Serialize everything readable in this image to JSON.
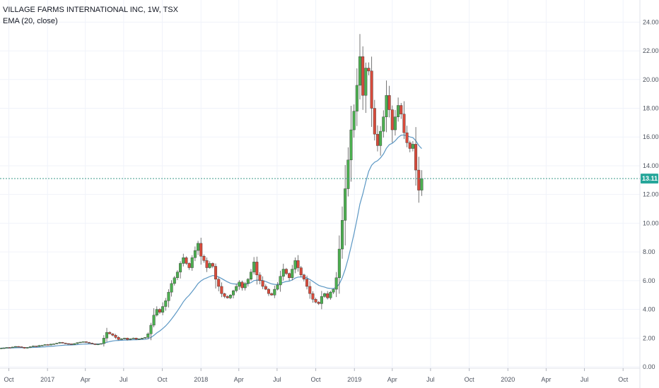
{
  "header": {
    "title": "VILLAGE FARMS INTERNATIONAL INC, 1W, TSX",
    "indicator": "EMA (20, close)"
  },
  "chart_data": {
    "type": "candlestick",
    "colors": {
      "up": "#4caf50",
      "down": "#d84b3b",
      "ema": "#5b97c4",
      "price_line": "#3d9a8b",
      "grid": "#f0f3fa",
      "axis_text": "#4c525e",
      "badge": "#26a69a"
    },
    "last_price_label": "13.11",
    "last_price": 13.11,
    "ylim": [
      0,
      25
    ],
    "y_ticks": [
      0,
      2,
      4,
      6,
      8,
      10,
      12,
      14,
      16,
      18,
      20,
      22,
      24
    ],
    "y_tick_labels": [
      "0.00",
      "2.00",
      "4.00",
      "6.00",
      "8.00",
      "10.00",
      "12.00",
      "14.00",
      "16.00",
      "18.00",
      "20.00",
      "22.00",
      "24.00"
    ],
    "x_tick_labels": [
      "Oct",
      "2017",
      "Apr",
      "Jul",
      "Oct",
      "2018",
      "Apr",
      "Jul",
      "Oct",
      "2019",
      "Apr",
      "Jul",
      "Oct",
      "2020",
      "Apr",
      "Jul",
      "Oct"
    ],
    "x_ticks": [
      "2016-10-01",
      "2017-01-01",
      "2017-04-01",
      "2017-07-01",
      "2017-10-01",
      "2018-01-01",
      "2018-04-01",
      "2018-07-01",
      "2018-10-01",
      "2019-01-01",
      "2019-04-01",
      "2019-07-01",
      "2019-10-01",
      "2020-01-01",
      "2020-04-01",
      "2020-07-01",
      "2020-10-01"
    ],
    "xlim": [
      "2016-09-10",
      "2020-11-10"
    ],
    "closes": [
      1.3,
      1.32,
      1.35,
      1.33,
      1.38,
      1.42,
      1.4,
      1.36,
      1.3,
      1.35,
      1.4,
      1.45,
      1.42,
      1.48,
      1.5,
      1.55,
      1.52,
      1.58,
      1.6,
      1.65,
      1.7,
      1.65,
      1.62,
      1.6,
      1.55,
      1.62,
      1.68,
      1.72,
      1.75,
      1.7,
      1.65,
      1.6,
      1.55,
      1.58,
      1.62,
      2.0,
      2.4,
      2.3,
      2.2,
      2.05,
      1.9,
      1.95,
      2.0,
      1.9,
      1.95,
      2.0,
      1.92,
      1.95,
      2.0,
      2.05,
      2.3,
      2.9,
      3.6,
      4.0,
      3.8,
      4.2,
      4.6,
      5.2,
      5.8,
      6.2,
      6.6,
      7.2,
      7.6,
      7.2,
      6.9,
      7.6,
      8.1,
      8.6,
      7.7,
      7.4,
      6.9,
      7.2,
      7.0,
      6.1,
      5.6,
      5.1,
      4.9,
      4.8,
      5.0,
      5.3,
      5.6,
      5.9,
      5.5,
      5.8,
      6.1,
      6.6,
      7.3,
      6.4,
      6.0,
      5.6,
      5.4,
      5.1,
      5.0,
      5.4,
      5.7,
      6.3,
      6.8,
      6.5,
      6.2,
      6.8,
      7.4,
      6.9,
      6.4,
      6.1,
      5.6,
      5.1,
      4.7,
      4.5,
      4.4,
      4.9,
      5.1,
      4.8,
      5.2,
      5.4,
      6.2,
      8.2,
      10.2,
      12.4,
      14.4,
      16.5,
      17.8,
      19.6,
      21.6,
      18.9,
      20.8,
      20.6,
      18.0,
      16.2,
      15.4,
      16.4,
      17.4,
      18.9,
      17.9,
      16.5,
      17.4,
      18.2,
      17.6,
      16.3,
      15.6,
      15.2,
      15.5,
      13.7,
      12.3,
      13.11
    ]
  }
}
